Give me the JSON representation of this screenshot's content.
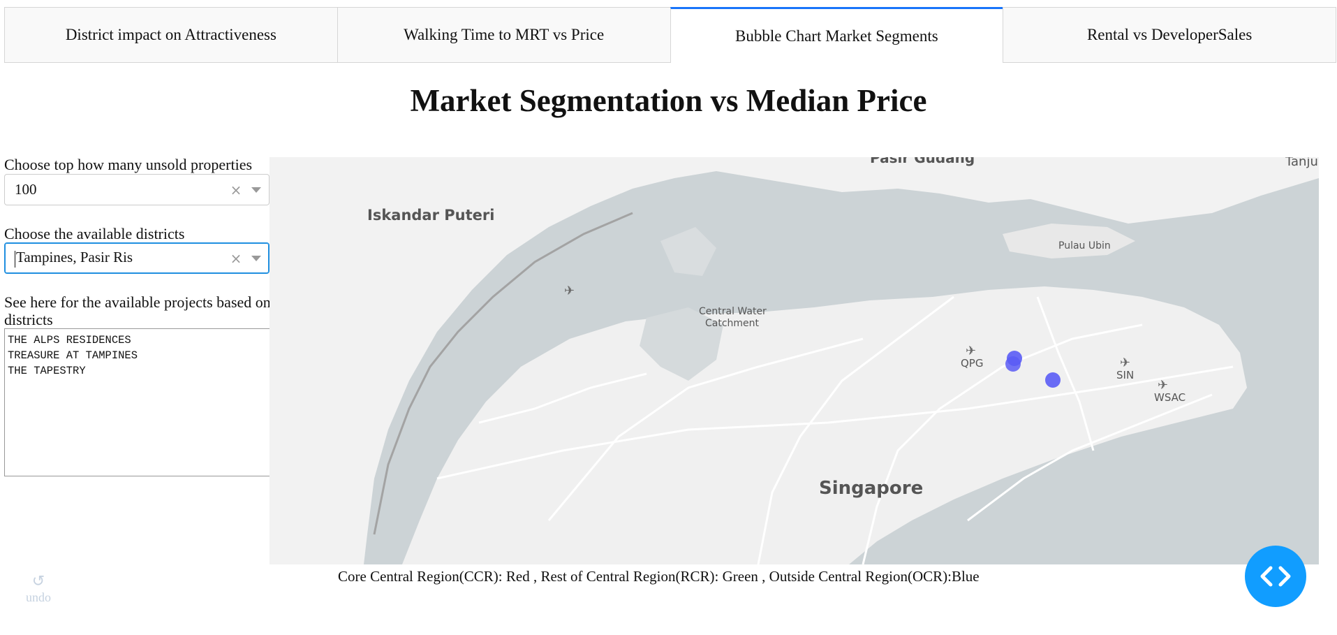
{
  "tabs": [
    {
      "label": "District impact on Attractiveness",
      "active": false
    },
    {
      "label": "Walking Time to MRT vs Price",
      "active": false
    },
    {
      "label": "Bubble Chart Market Segments",
      "active": true
    },
    {
      "label": "Rental vs DeveloperSales",
      "active": false
    }
  ],
  "page_title": "Market Segmentation vs Median Price",
  "controls": {
    "top_label": "Choose top how many unsold properties",
    "top_value": "100",
    "district_label": "Choose the available districts",
    "district_value": "Tampines, Pasir Ris",
    "projects_label": "See here for the available projects based on districts",
    "projects_text": "THE ALPS RESIDENCES\nTREASURE AT TAMPINES\nTHE TAPESTRY"
  },
  "map": {
    "labels": {
      "iskandar": "Iskandar Puteri",
      "pasir_gudang": "Pasir Gudang",
      "tanjung": "Tanju",
      "pulau_ubin": "Pulau Ubin",
      "central_water": "Central Water",
      "catchment": "Catchment",
      "qpg": "QPG",
      "sin": "SIN",
      "wsac": "WSAC",
      "singapore": "Singapore"
    },
    "marker_color": "#5a5cf5",
    "marker_count": 3
  },
  "legend_text": "Core Central Region(CCR): Red , Rest of Central Region(RCR): Green , Outside Central Region(OCR):Blue",
  "undo_label": "undo",
  "colors": {
    "accent": "#1975fa",
    "code_button": "#119dff",
    "ocr_blue": "#5a5cf5"
  }
}
